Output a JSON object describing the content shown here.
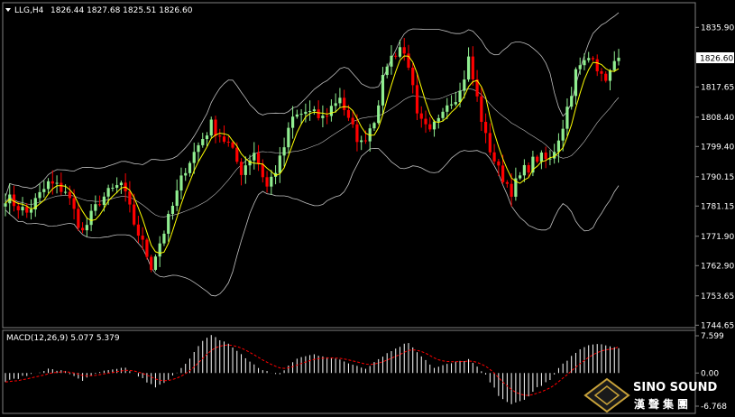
{
  "header": {
    "symbol_label": "LLG,H4",
    "ohlc": "1826.44 1827.68 1825.51 1826.60"
  },
  "price_panel": {
    "current_price_label": "1826.60",
    "ticks": [
      "1835.90",
      "1826.60",
      "1817.65",
      "1808.40",
      "1799.40",
      "1790.15",
      "1781.15",
      "1771.90",
      "1762.90",
      "1753.65",
      "1744.65"
    ]
  },
  "macd_panel": {
    "label": "MACD(12,26,9) 5.077 5.379",
    "ticks": [
      "7.599",
      "0.00",
      "-6.768"
    ]
  },
  "brand": {
    "name_en": "SINO SOUND",
    "name_cn": "漢聲集團"
  },
  "colors": {
    "background": "#000000",
    "bull": "#90ee90",
    "bear": "#ff0000",
    "ma": "#ffff00",
    "band": "#c0c0c0",
    "macd_hist": "#ffffff",
    "macd_signal": "#ff0000",
    "gold": "#c8a23a"
  },
  "chart_data": {
    "type": "candlestick",
    "symbol": "LLG",
    "timeframe": "H4",
    "ylim": [
      1744.65,
      1838.5
    ],
    "close_path": [
      [
        0,
        1784
      ],
      [
        5,
        1779
      ],
      [
        10,
        1788
      ],
      [
        14,
        1786
      ],
      [
        18,
        1773
      ],
      [
        22,
        1783
      ],
      [
        27,
        1788
      ],
      [
        30,
        1776
      ],
      [
        34,
        1763
      ],
      [
        38,
        1777
      ],
      [
        42,
        1793
      ],
      [
        46,
        1802
      ],
      [
        48,
        1806
      ],
      [
        52,
        1800
      ],
      [
        55,
        1792
      ],
      [
        58,
        1798
      ],
      [
        61,
        1787
      ],
      [
        64,
        1795
      ],
      [
        67,
        1808
      ],
      [
        70,
        1810
      ],
      [
        74,
        1808
      ],
      [
        78,
        1815
      ],
      [
        80,
        1807
      ],
      [
        83,
        1800
      ],
      [
        86,
        1808
      ],
      [
        89,
        1825
      ],
      [
        92,
        1830
      ],
      [
        94,
        1825
      ],
      [
        96,
        1808
      ],
      [
        99,
        1803
      ],
      [
        102,
        1812
      ],
      [
        106,
        1816
      ],
      [
        108,
        1826
      ],
      [
        110,
        1814
      ],
      [
        112,
        1802
      ],
      [
        115,
        1792
      ],
      [
        118,
        1786
      ],
      [
        121,
        1792
      ],
      [
        124,
        1796
      ],
      [
        127,
        1795
      ],
      [
        130,
        1806
      ],
      [
        133,
        1822
      ],
      [
        137,
        1828
      ],
      [
        139,
        1820
      ],
      [
        141,
        1822
      ],
      [
        143,
        1826
      ]
    ],
    "macd": {
      "label": "MACD(12,26,9)",
      "main": 5.077,
      "signal": 5.379,
      "ylim": [
        -6.768,
        7.599
      ],
      "histogram_path": [
        [
          0,
          -1.8
        ],
        [
          5,
          -0.5
        ],
        [
          10,
          0.8
        ],
        [
          14,
          0.3
        ],
        [
          18,
          -1.5
        ],
        [
          22,
          0.2
        ],
        [
          28,
          1.0
        ],
        [
          32,
          -1.2
        ],
        [
          35,
          -3.0
        ],
        [
          38,
          -1.5
        ],
        [
          42,
          2.0
        ],
        [
          46,
          6.5
        ],
        [
          48,
          7.6
        ],
        [
          52,
          6.0
        ],
        [
          56,
          3.0
        ],
        [
          60,
          0.5
        ],
        [
          64,
          -0.3
        ],
        [
          68,
          3.0
        ],
        [
          72,
          3.8
        ],
        [
          76,
          3.2
        ],
        [
          80,
          2.0
        ],
        [
          84,
          1.0
        ],
        [
          88,
          3.5
        ],
        [
          92,
          5.5
        ],
        [
          94,
          6.2
        ],
        [
          97,
          3.5
        ],
        [
          100,
          1.0
        ],
        [
          104,
          2.0
        ],
        [
          108,
          2.8
        ],
        [
          112,
          -0.5
        ],
        [
          115,
          -4.5
        ],
        [
          118,
          -6.5
        ],
        [
          121,
          -5.5
        ],
        [
          124,
          -3.0
        ],
        [
          127,
          -1.5
        ],
        [
          130,
          2.0
        ],
        [
          134,
          4.8
        ],
        [
          137,
          6.0
        ],
        [
          140,
          5.5
        ],
        [
          143,
          5.1
        ]
      ]
    }
  }
}
